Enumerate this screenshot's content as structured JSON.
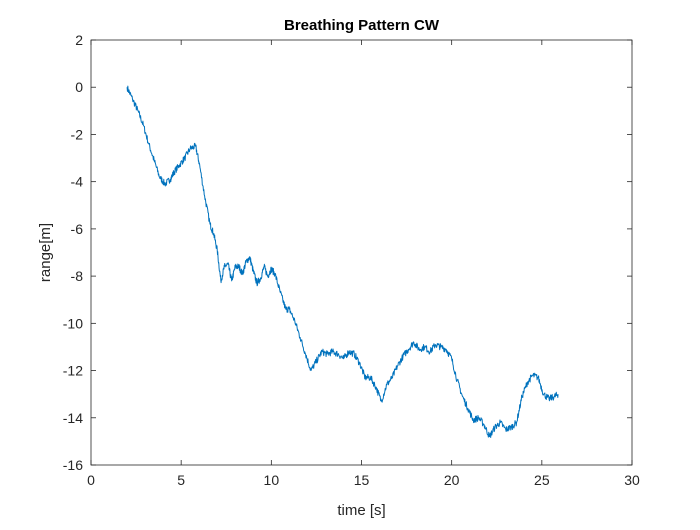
{
  "chart_data": {
    "type": "line",
    "title": "Breathing Pattern CW",
    "xlabel": "time [s]",
    "ylabel": "range[m]",
    "xlim": [
      0,
      30
    ],
    "ylim": [
      -16,
      2
    ],
    "xticks": [
      0,
      5,
      10,
      15,
      20,
      25,
      30
    ],
    "yticks": [
      2,
      0,
      -2,
      -4,
      -6,
      -8,
      -10,
      -12,
      -14,
      -16
    ],
    "xtick_labels": [
      "0",
      "5",
      "10",
      "15",
      "20",
      "25",
      "30"
    ],
    "ytick_labels": [
      "2",
      "0",
      "-2",
      "-4",
      "-6",
      "-8",
      "-10",
      "-12",
      "-14",
      "-16"
    ],
    "grid": false,
    "box": true,
    "series": [
      {
        "color": "#0072BD",
        "x": [
          2.0,
          2.3,
          2.6,
          2.9,
          3.2,
          3.5,
          3.8,
          4.1,
          4.4,
          4.6,
          4.9,
          5.2,
          5.5,
          5.8,
          6.0,
          6.3,
          6.6,
          6.8,
          7.0,
          7.2,
          7.4,
          7.6,
          7.8,
          8.0,
          8.2,
          8.4,
          8.6,
          8.8,
          9.0,
          9.2,
          9.4,
          9.6,
          9.8,
          10.0,
          10.2,
          10.5,
          10.8,
          11.0,
          11.3,
          11.6,
          11.9,
          12.2,
          12.5,
          12.8,
          13.1,
          13.4,
          13.7,
          14.0,
          14.3,
          14.6,
          14.9,
          15.2,
          15.5,
          15.8,
          16.1,
          16.4,
          16.7,
          17.0,
          17.3,
          17.6,
          17.9,
          18.2,
          18.5,
          18.8,
          19.1,
          19.4,
          19.7,
          20.0,
          20.3,
          20.6,
          20.9,
          21.2,
          21.5,
          21.8,
          22.1,
          22.4,
          22.7,
          23.0,
          23.3,
          23.6,
          23.9,
          24.2,
          24.5,
          24.8,
          25.1,
          25.4,
          25.7,
          25.9
        ],
        "y": [
          0.0,
          -0.5,
          -1.0,
          -1.6,
          -2.4,
          -3.1,
          -3.8,
          -4.1,
          -3.9,
          -3.6,
          -3.3,
          -3.0,
          -2.6,
          -2.5,
          -3.2,
          -4.6,
          -5.8,
          -6.2,
          -6.9,
          -8.2,
          -7.6,
          -7.5,
          -8.2,
          -7.6,
          -7.6,
          -7.9,
          -7.4,
          -7.2,
          -7.8,
          -8.3,
          -8.1,
          -7.6,
          -8.0,
          -7.7,
          -7.9,
          -8.7,
          -9.4,
          -9.4,
          -9.9,
          -10.6,
          -11.3,
          -12.0,
          -11.6,
          -11.2,
          -11.3,
          -11.2,
          -11.3,
          -11.5,
          -11.2,
          -11.3,
          -11.7,
          -12.3,
          -12.3,
          -12.7,
          -13.3,
          -12.6,
          -12.3,
          -11.8,
          -11.4,
          -11.1,
          -10.8,
          -11.1,
          -11.0,
          -11.2,
          -10.9,
          -11.0,
          -11.1,
          -11.5,
          -12.4,
          -13.1,
          -13.6,
          -14.1,
          -14.0,
          -14.3,
          -14.8,
          -14.4,
          -14.2,
          -14.5,
          -14.4,
          -14.2,
          -13.1,
          -12.5,
          -12.2,
          -12.3,
          -13.0,
          -13.2,
          -13.1,
          -13.0
        ]
      }
    ]
  }
}
